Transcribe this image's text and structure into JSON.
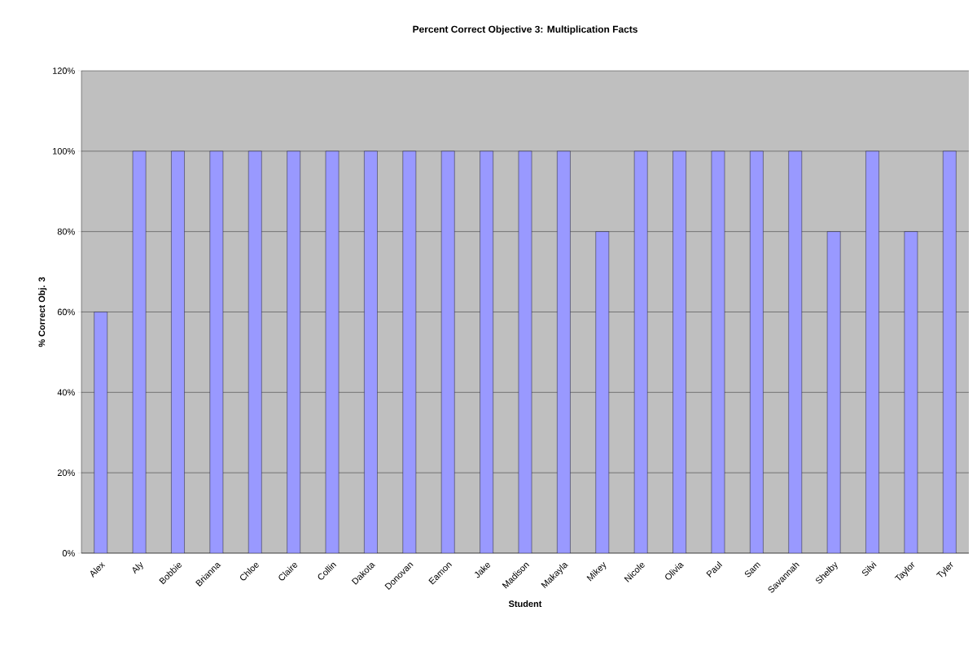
{
  "chart_data": {
    "type": "bar",
    "title": "Percent Correct Objective 3: Multiplication Facts",
    "xlabel": "Student",
    "ylabel": "% Correct Obj. 3",
    "categories": [
      "Alex",
      "Aly",
      "Bobbie",
      "Brianna",
      "Chloe",
      "Claire",
      "Collin",
      "Dakota",
      "Donovan",
      "Eamon",
      "Jake",
      "Madison",
      "Makayla",
      "Mikey",
      "Nicole",
      "Olivia",
      "Paul",
      "Sam",
      "Savannah",
      "Shelby",
      "Silvi",
      "Taylor",
      "Tyler"
    ],
    "values": [
      60,
      100,
      100,
      100,
      100,
      100,
      100,
      100,
      100,
      100,
      100,
      100,
      100,
      80,
      100,
      100,
      100,
      100,
      100,
      80,
      100,
      80,
      100
    ],
    "color": "#9999ff",
    "ylim": [
      0,
      120
    ],
    "yticks": [
      {
        "value": 0,
        "label": "0%"
      },
      {
        "value": 20,
        "label": "20%"
      },
      {
        "value": 40,
        "label": "40%"
      },
      {
        "value": 60,
        "label": "60%"
      },
      {
        "value": 80,
        "label": "80%"
      },
      {
        "value": 100,
        "label": "100%"
      },
      {
        "value": 120,
        "label": "120%"
      }
    ],
    "grid": "y"
  }
}
